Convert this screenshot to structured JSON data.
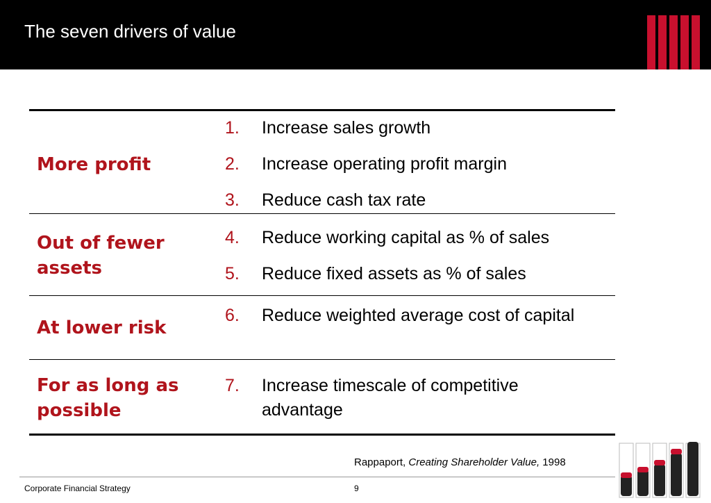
{
  "slide": {
    "title": "The seven drivers of value"
  },
  "colors": {
    "accent": "#b0141c",
    "header_bg": "#000000",
    "logo_red": "#c8102e"
  },
  "table": {
    "sections": [
      {
        "label": "More profit",
        "items": [
          {
            "num": "1.",
            "text": "Increase sales growth"
          },
          {
            "num": "2.",
            "text": "Increase operating profit margin"
          },
          {
            "num": "3.",
            "text": "Reduce cash tax rate"
          }
        ]
      },
      {
        "label": "Out of fewer assets",
        "items": [
          {
            "num": "4.",
            "text": "Reduce working capital as % of sales"
          },
          {
            "num": "5.",
            "text": "Reduce fixed assets as % of sales"
          }
        ]
      },
      {
        "label": "At lower risk",
        "items": [
          {
            "num": "6.",
            "text": "Reduce weighted average cost of capital"
          }
        ]
      },
      {
        "label": "For as long as possible",
        "items": [
          {
            "num": "7.",
            "text": "Increase timescale of competitive advantage"
          }
        ]
      }
    ]
  },
  "citation": {
    "author": "Rappaport,",
    "work": "Creating Shareholder Value,",
    "year": "1998"
  },
  "footer": {
    "left": "Corporate Financial Strategy",
    "page": "9"
  }
}
